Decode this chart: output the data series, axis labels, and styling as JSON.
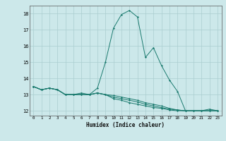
{
  "title": "",
  "xlabel": "Humidex (Indice chaleur)",
  "bg_color": "#cce8ea",
  "grid_color": "#aacdd0",
  "line_color": "#1a7a6e",
  "xlim": [
    -0.5,
    23.5
  ],
  "ylim": [
    11.7,
    18.5
  ],
  "yticks": [
    12,
    13,
    14,
    15,
    16,
    17,
    18
  ],
  "xticks": [
    0,
    1,
    2,
    3,
    4,
    5,
    6,
    7,
    8,
    9,
    10,
    11,
    12,
    13,
    14,
    15,
    16,
    17,
    18,
    19,
    20,
    21,
    22,
    23
  ],
  "series": [
    [
      13.5,
      13.3,
      13.4,
      13.3,
      13.0,
      13.0,
      13.1,
      13.0,
      13.4,
      15.0,
      17.1,
      17.95,
      18.2,
      17.8,
      15.3,
      15.9,
      14.8,
      13.9,
      13.2,
      12.0,
      12.0,
      12.0,
      12.1,
      12.0
    ],
    [
      13.5,
      13.3,
      13.4,
      13.3,
      13.0,
      13.0,
      13.0,
      13.0,
      13.1,
      13.0,
      12.75,
      12.65,
      12.5,
      12.4,
      12.3,
      12.2,
      12.15,
      12.05,
      12.0,
      12.0,
      12.0,
      12.0,
      12.0,
      12.0
    ],
    [
      13.5,
      13.3,
      13.4,
      13.3,
      13.0,
      13.0,
      13.0,
      13.0,
      13.1,
      13.0,
      12.85,
      12.75,
      12.65,
      12.55,
      12.4,
      12.3,
      12.2,
      12.1,
      12.05,
      12.0,
      12.0,
      12.0,
      12.0,
      12.0
    ],
    [
      13.5,
      13.3,
      13.4,
      13.3,
      13.0,
      13.0,
      13.0,
      13.0,
      13.1,
      13.0,
      12.95,
      12.85,
      12.75,
      12.65,
      12.5,
      12.4,
      12.3,
      12.15,
      12.05,
      12.0,
      12.0,
      12.0,
      12.0,
      12.0
    ]
  ]
}
